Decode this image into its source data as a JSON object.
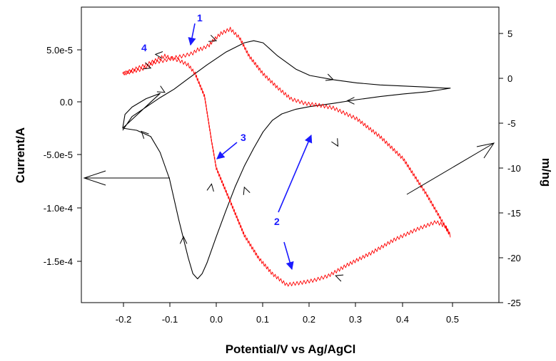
{
  "chart_data": {
    "type": "line",
    "title": "",
    "xlabel": "Potential/V vs Ag/AgCl",
    "ylabel": "Current/A",
    "y2label": "m/ng",
    "xlim": [
      -0.3,
      0.6
    ],
    "ylim": [
      -0.0002,
      6.25e-05
    ],
    "y2lim": [
      -25,
      8
    ],
    "x_ticks": [
      -0.2,
      -0.1,
      0.0,
      0.1,
      0.2,
      0.3,
      0.4,
      0.5
    ],
    "x_tick_labels": [
      "-0.2",
      "-0.1",
      "0.0",
      "0.1",
      "0.2",
      "0.3",
      "0.4",
      "0.5"
    ],
    "y_ticks": [
      5e-05,
      0.0,
      -5e-05,
      -0.0001,
      -0.00015
    ],
    "y_tick_labels": [
      "5.0e-5",
      "0.0",
      "-5.0e-5",
      "-1.0e-4",
      "-1.5e-4"
    ],
    "y2_ticks": [
      5,
      0,
      -5,
      -10,
      -15,
      -20,
      -25
    ],
    "y2_tick_labels": [
      "5",
      "0",
      "-5",
      "-10",
      "-15",
      "-20",
      "-25"
    ],
    "grid": false,
    "legend": "none",
    "series": [
      {
        "color": "#000000",
        "axis": "left",
        "x": [
          -0.2,
          -0.18,
          -0.15,
          -0.12,
          -0.09,
          -0.06,
          -0.02,
          0.02,
          0.06,
          0.08,
          0.1,
          0.13,
          0.17,
          0.2,
          0.25,
          0.3,
          0.35,
          0.4,
          0.45,
          0.49,
          0.5,
          0.48,
          0.45,
          0.4,
          0.35,
          0.3,
          0.25,
          0.2,
          0.17,
          0.14,
          0.12,
          0.1,
          0.08,
          0.06,
          0.04,
          0.02,
          0.0,
          -0.02,
          -0.03,
          -0.04,
          -0.05,
          -0.06,
          -0.08,
          -0.1,
          -0.12,
          -0.14,
          -0.17,
          -0.2,
          -0.195,
          -0.18,
          -0.15,
          -0.12,
          -0.2
        ],
        "y": [
          -2.7e-05,
          -1.4e-05,
          -5e-06,
          4e-06,
          1.2e-05,
          2.2e-05,
          3.5e-05,
          4.7e-05,
          5.6e-05,
          5.8e-05,
          5.6e-05,
          4.4e-05,
          3.1e-05,
          2.5e-05,
          2.1e-05,
          1.8e-05,
          1.6e-05,
          1.5e-05,
          1.4e-05,
          1.3e-05,
          1.3e-05,
          1.15e-05,
          9.5e-06,
          7.5e-06,
          5e-06,
          2e-06,
          -1.5e-06,
          -4.5e-06,
          -7e-06,
          -1.15e-05,
          -1.75e-05,
          -2.85e-05,
          -4.4e-05,
          -6.1e-05,
          -8.1e-05,
          -0.000104,
          -0.000128,
          -0.000153,
          -0.000163,
          -0.000168,
          -0.000163,
          -0.000148,
          -0.000112,
          -7.3e-05,
          -4.8e-05,
          -3.3e-05,
          -2.7e-05,
          -2.5e-05,
          -1.2e-05,
          -5e-06,
          3e-06,
          8e-06,
          -2.5e-05
        ]
      },
      {
        "color": "#ff0000",
        "axis": "right",
        "x": [
          -0.2,
          -0.15,
          -0.11,
          -0.1,
          -0.08,
          -0.06,
          -0.045,
          -0.025,
          -0.01,
          0.0,
          0.02,
          0.04,
          0.06,
          0.09,
          0.12,
          0.15,
          0.18,
          0.21,
          0.24,
          0.28,
          0.33,
          0.38,
          0.43,
          0.47,
          0.49,
          0.5,
          0.45,
          0.4,
          0.35,
          0.3,
          0.25,
          0.22,
          0.19,
          0.16,
          0.13,
          0.1,
          0.07,
          0.05,
          0.03,
          0.01,
          -0.005,
          -0.015,
          -0.03,
          -0.04,
          -0.05,
          -0.07,
          -0.09,
          -0.11,
          -0.13,
          -0.16,
          -0.2
        ],
        "y": [
          0.5,
          1.5,
          2.5,
          2.3,
          2.0,
          1.5,
          0.5,
          -2.0,
          -7.0,
          -10.0,
          -12.5,
          -15.0,
          -17.5,
          -20.0,
          -21.8,
          -23.0,
          -22.8,
          -22.5,
          -22.0,
          -20.8,
          -19.5,
          -18.0,
          -16.8,
          -16.0,
          -16.5,
          -17.5,
          -13.0,
          -9.0,
          -6.5,
          -4.5,
          -3.3,
          -3.0,
          -2.8,
          -2.3,
          -1.0,
          0.5,
          2.5,
          4.5,
          5.5,
          5.0,
          4.3,
          3.7,
          3.3,
          3.2,
          2.8,
          2.5,
          2.3,
          2.0,
          1.8,
          1.0,
          0.5
        ]
      }
    ],
    "annotations": [
      {
        "text": "1",
        "x": -0.045,
        "y": 7.8e-05
      },
      {
        "text": "2",
        "x": 0.125,
        "y": -0.000112
      },
      {
        "text": "3",
        "x": 0.05,
        "y": -3.3e-05
      },
      {
        "text": "4",
        "x": -0.16,
        "y": 4.9e-05
      }
    ]
  }
}
